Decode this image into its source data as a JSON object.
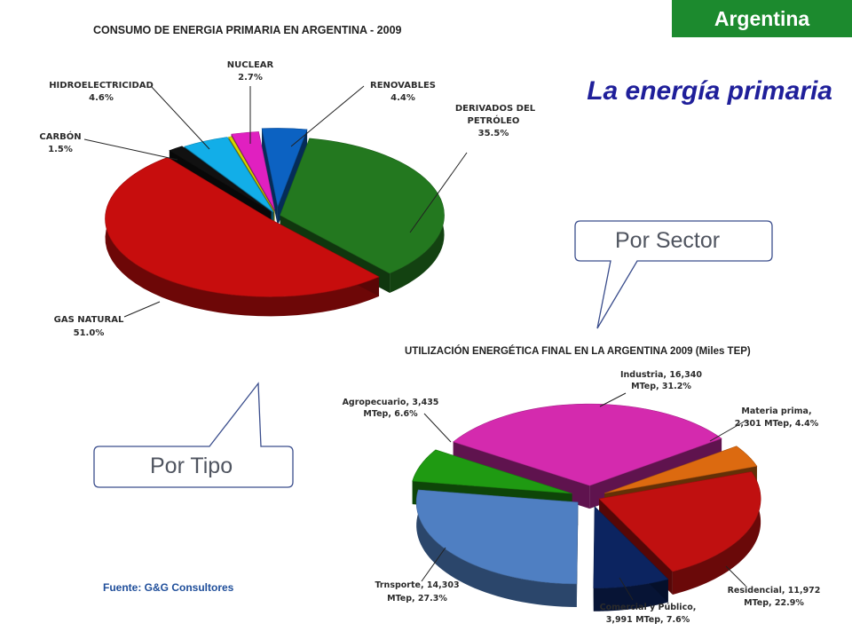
{
  "header": {
    "badge": "Argentina",
    "headline": "La energía primaria"
  },
  "callouts": {
    "sector": "Por Sector",
    "tipo": "Por Tipo"
  },
  "source": "Fuente: G&G Consultores",
  "colors": {
    "accent": "#1c8a2e",
    "headline": "#1f1f9a"
  },
  "chart_data": [
    {
      "type": "pie",
      "title": "CONSUMO DE ENERGIA PRIMARIA EN ARGENTINA - 2009",
      "slices": [
        {
          "name": "DERIVADOS DEL PETRÓLEO",
          "value": 35.5,
          "pct_label": "35.5%",
          "color": "#23781f"
        },
        {
          "name": "GAS NATURAL",
          "value": 51.0,
          "pct_label": "51.0%",
          "color": "#c70d0d"
        },
        {
          "name": "CARBÓN",
          "value": 1.5,
          "pct_label": "1.5%",
          "color": "#111111"
        },
        {
          "name": "HIDROELECTRICIDAD",
          "value": 4.6,
          "pct_label": "4.6%",
          "color": "#12aee8"
        },
        {
          "name": "",
          "value": 0.3,
          "pct_label": "",
          "color": "#d8d800"
        },
        {
          "name": "NUCLEAR",
          "value": 2.7,
          "pct_label": "2.7%",
          "color": "#e020c0"
        },
        {
          "name": "RENOVABLES",
          "value": 4.4,
          "pct_label": "4.4%",
          "color": "#0c62c2"
        }
      ]
    },
    {
      "type": "pie",
      "title": "UTILIZACIÓN ENERGÉTICA FINAL EN LA ARGENTINA 2009 (Miles TEP)",
      "slices": [
        {
          "name": "Industria",
          "value": 16340,
          "share": 31.2,
          "label_line1": "Industria,  16,340",
          "label_line2": "MTep, 31.2%",
          "color": "#d42aae"
        },
        {
          "name": "Materia prima",
          "value": 2301,
          "share": 4.4,
          "label_line1": "Materia prima,",
          "label_line2": "2,301 MTep, 4.4%",
          "color": "#dc6a10"
        },
        {
          "name": "Residencial",
          "value": 11972,
          "share": 22.9,
          "label_line1": "Residencial,  11,972",
          "label_line2": "MTep, 22.9%",
          "color": "#c01010"
        },
        {
          "name": "Comercial y Público",
          "value": 3991,
          "share": 7.6,
          "label_line1": "Comercial y Público,",
          "label_line2": "3,991 MTep, 7.6%",
          "color": "#0c2460"
        },
        {
          "name": "Trnsporte",
          "value": 14303,
          "share": 27.3,
          "label_line1": "Trnsporte,  14,303",
          "label_line2": "MTep, 27.3%",
          "color": "#4f7fc2"
        },
        {
          "name": "Agropecuario",
          "value": 3435,
          "share": 6.6,
          "label_line1": "Agropecuario,  3,435",
          "label_line2": "MTep, 6.6%",
          "color": "#1f9a12"
        }
      ]
    }
  ]
}
